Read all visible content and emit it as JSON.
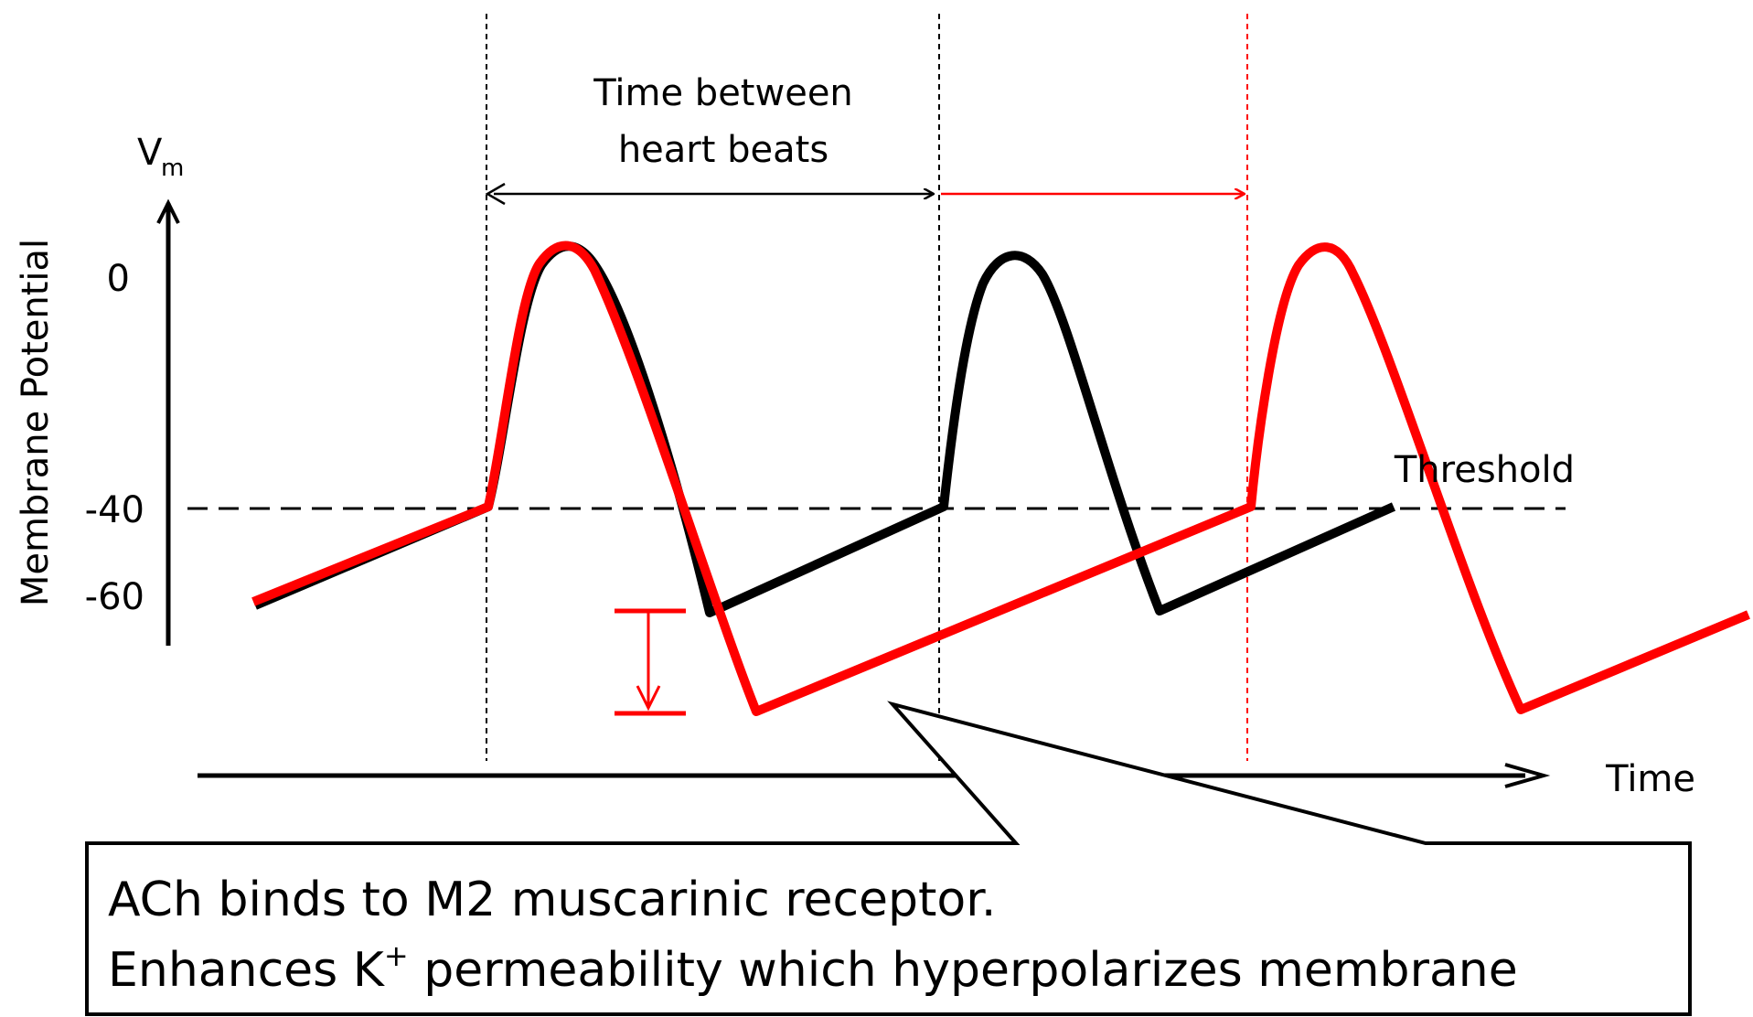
{
  "colors": {
    "baseline": "#000000",
    "acetylcholine": "#ff0000"
  },
  "labels": {
    "y_axis_symbol": "V",
    "y_axis_subscript": "m",
    "y_axis_title": "Membrane Potential",
    "x_axis_title": "Time",
    "threshold": "Threshold",
    "interval_line1": "Time between",
    "interval_line2": "heart beats"
  },
  "y_ticks": [
    "0",
    "-40",
    "-60"
  ],
  "callout": {
    "line1": "ACh binds to M2 muscarinic receptor.",
    "line2_prefix": "Enhances K",
    "line2_sup": "+",
    "line2_suffix": " permeability which hyperpolarizes membrane"
  }
}
